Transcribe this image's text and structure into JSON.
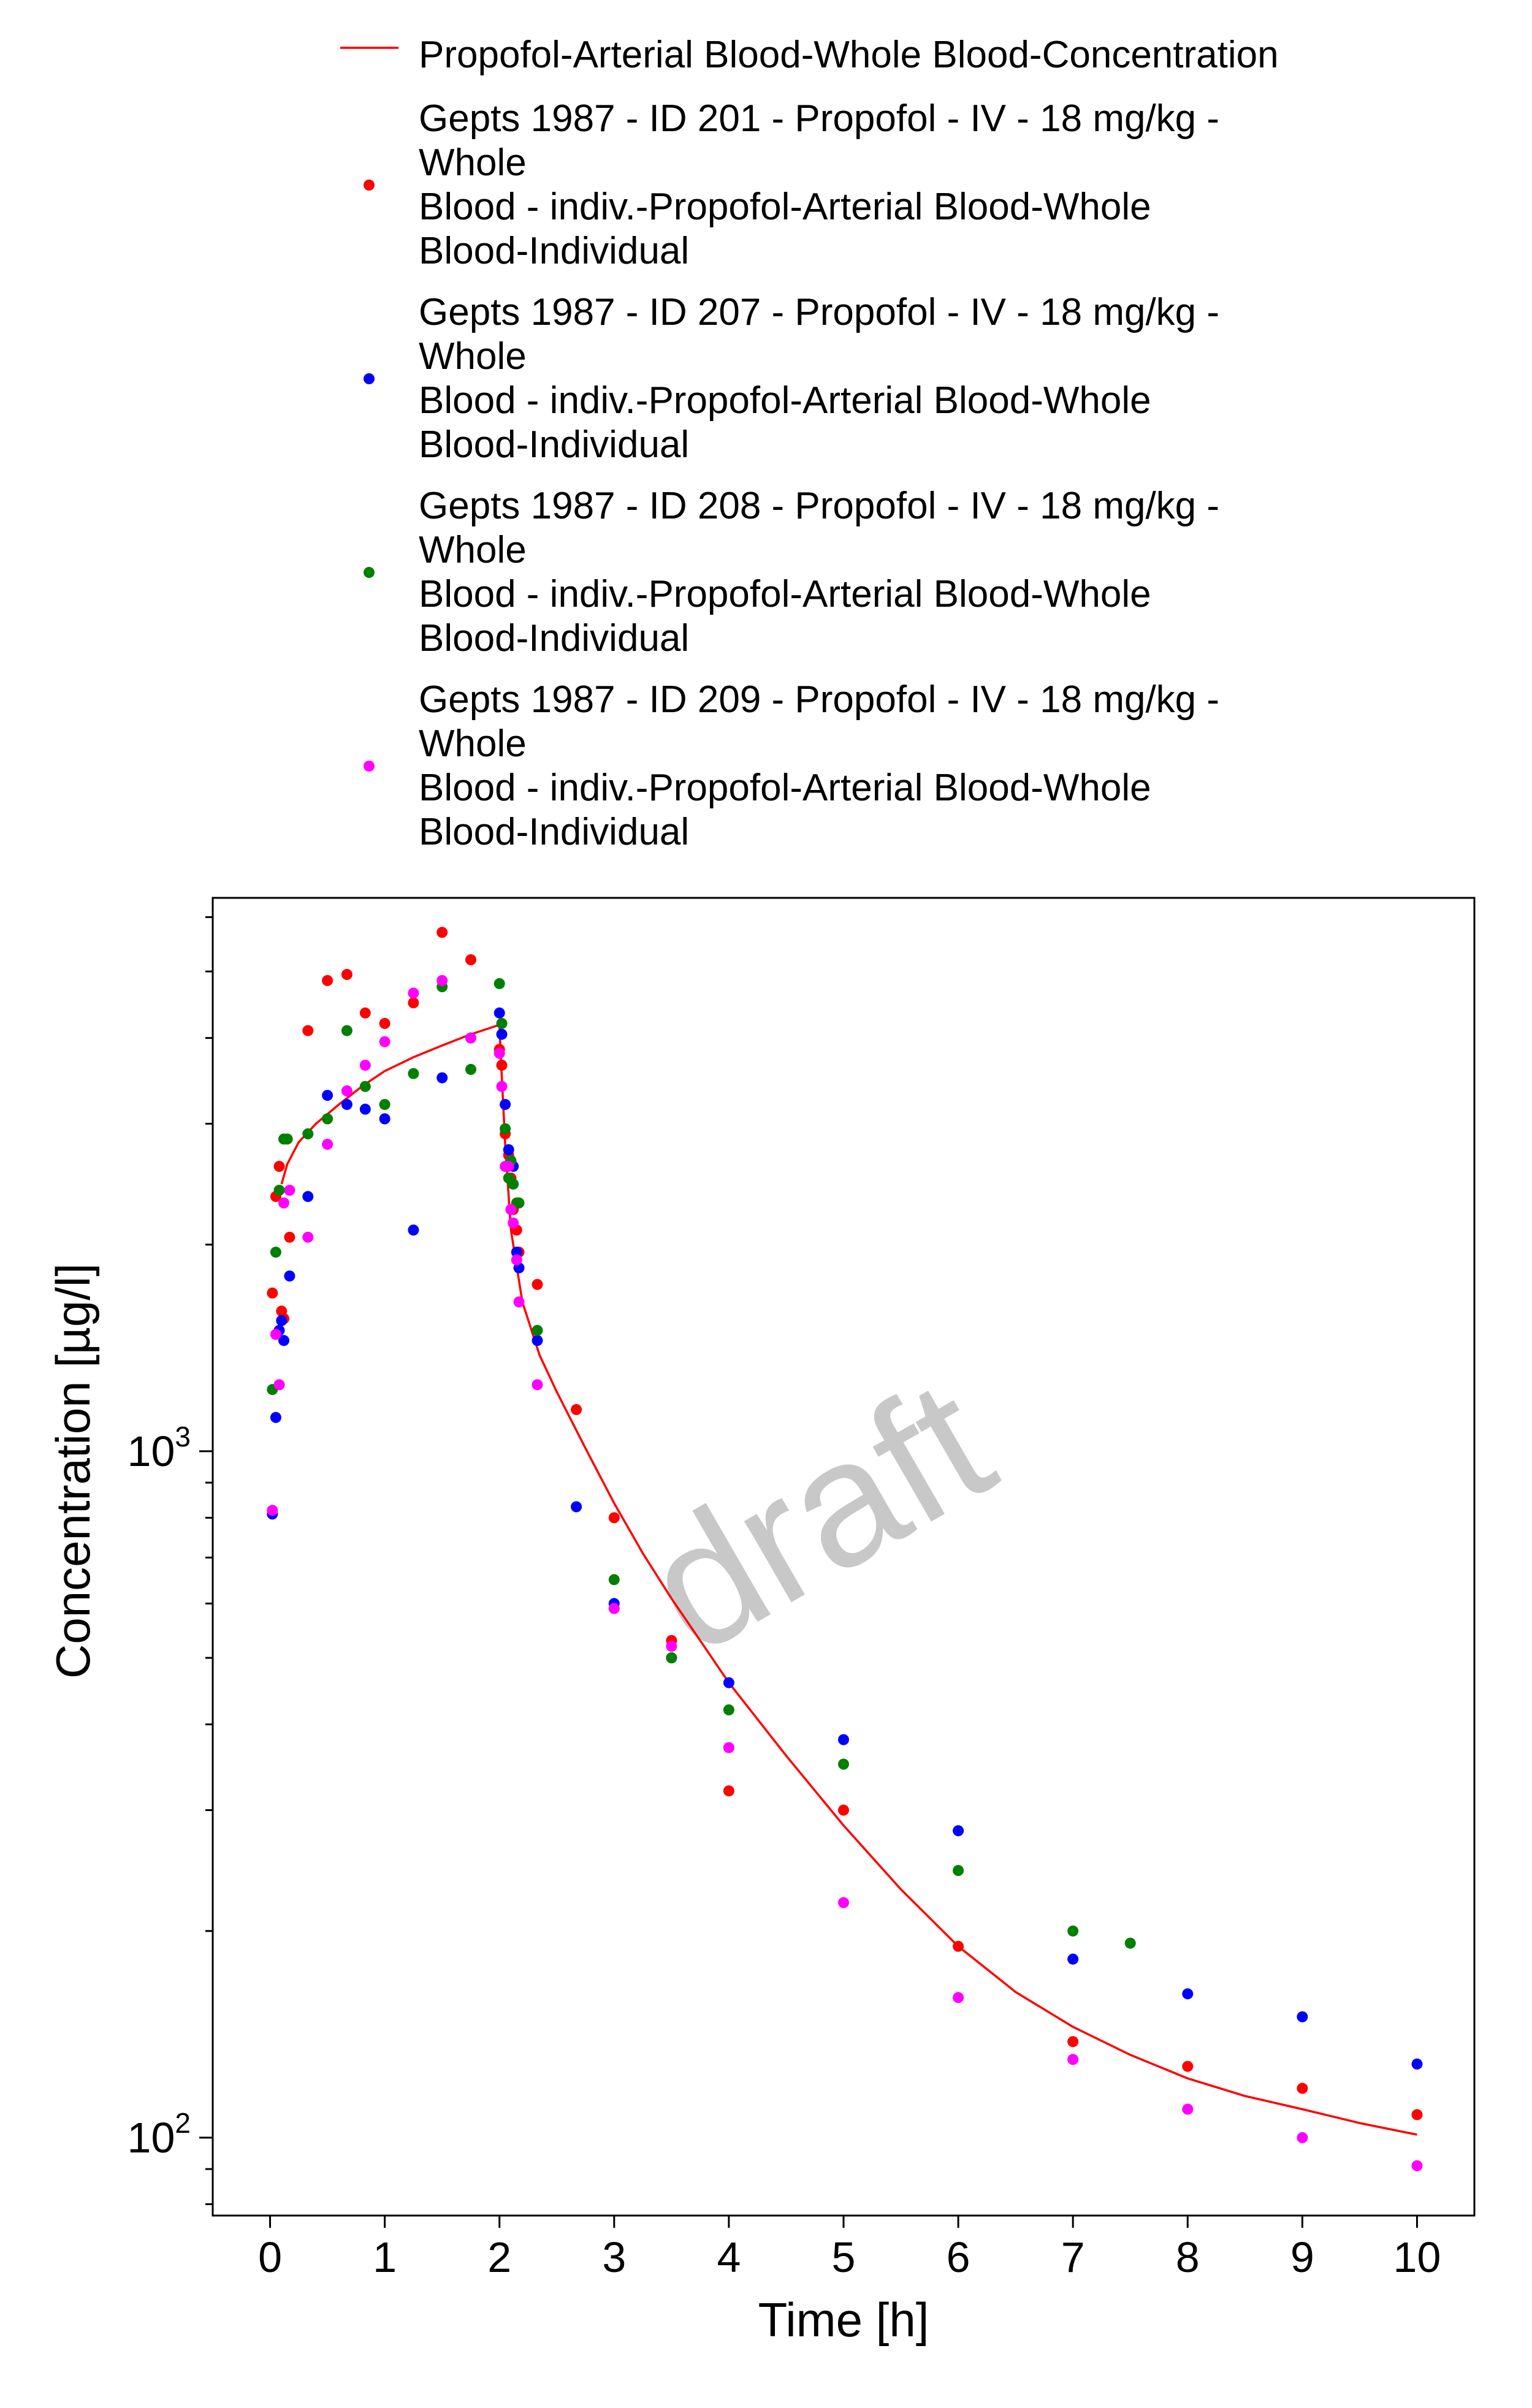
{
  "chart_data": {
    "type": "scatter",
    "watermark": "draft",
    "xlabel": "Time [h]",
    "ylabel": "Concentration [µg/l]",
    "x_scale": "linear",
    "y_scale": "log",
    "xlim": [
      -0.5,
      10.5
    ],
    "ylim": [
      77,
      6400
    ],
    "x_ticks": [
      0,
      1,
      2,
      3,
      4,
      5,
      6,
      7,
      8,
      9,
      10
    ],
    "x_tick_labels": [
      "0",
      "1",
      "2",
      "3",
      "4",
      "5",
      "6",
      "7",
      "8",
      "9",
      "10"
    ],
    "y_major_ticks": [
      100,
      1000
    ],
    "y_tick_labels": [
      {
        "base": "10",
        "exp": "2"
      },
      {
        "base": "10",
        "exp": "3"
      }
    ],
    "y_minor_ticks": [
      80,
      90,
      200,
      300,
      400,
      500,
      600,
      700,
      800,
      900,
      2000,
      3000,
      4000,
      5000,
      6000
    ],
    "grid": false,
    "legend_position": "top",
    "line": {
      "name": "Propofol-Arterial Blood-Whole Blood-Concentration",
      "color": "#ff0000",
      "x": [
        0.1,
        0.15,
        0.25,
        0.4,
        0.6,
        0.8,
        1.0,
        1.25,
        1.5,
        1.75,
        2.0,
        2.01,
        2.05,
        2.1,
        2.2,
        2.35,
        2.5,
        2.75,
        3.0,
        3.25,
        3.5,
        3.75,
        4.0,
        4.5,
        5.0,
        5.5,
        6.0,
        6.5,
        7.0,
        7.5,
        8.0,
        8.5,
        9.0,
        9.5,
        10.0
      ],
      "y": [
        2450,
        2620,
        2820,
        3000,
        3200,
        3400,
        3580,
        3750,
        3900,
        4050,
        4180,
        3800,
        2800,
        2100,
        1650,
        1380,
        1220,
        1010,
        840,
        710,
        610,
        530,
        460,
        360,
        285,
        230,
        190,
        163,
        145,
        132,
        122,
        115,
        110,
        105,
        101
      ]
    },
    "series": [
      {
        "name": "Gepts 1987 - ID 201 - Propofol - IV - 18 mg/kg - Whole Blood - indiv.-Propofol-Arterial Blood-Whole Blood-Individual",
        "legend_lines": [
          "Gepts 1987 - ID 201 - Propofol - IV - 18 mg/kg -",
          "Whole",
          "Blood - indiv.-Propofol-Arterial Blood-Whole",
          "Blood-Individual"
        ],
        "color": "#ff0000",
        "x": [
          0.02,
          0.05,
          0.08,
          0.1,
          0.12,
          0.17,
          0.33,
          0.5,
          0.67,
          0.83,
          1.0,
          1.25,
          1.5,
          1.75,
          2.0,
          2.02,
          2.05,
          2.08,
          2.1,
          2.12,
          2.15,
          2.17,
          2.33,
          2.67,
          3.0,
          3.5,
          4.0,
          5.0,
          6.0,
          7.0,
          8.0,
          9.0,
          10.0
        ],
        "y": [
          1700,
          2350,
          2600,
          1600,
          1560,
          2050,
          4100,
          4850,
          4950,
          4350,
          4200,
          4500,
          5700,
          5200,
          3850,
          3650,
          2900,
          2700,
          2500,
          2250,
          2100,
          1950,
          1750,
          1150,
          800,
          530,
          320,
          300,
          190,
          138,
          127,
          118,
          108
        ]
      },
      {
        "name": "Gepts 1987 - ID 207 - Propofol - IV - 18 mg/kg - Whole Blood - indiv.-Propofol-Arterial Blood-Whole Blood-Individual",
        "legend_lines": [
          "Gepts 1987 - ID 207 - Propofol - IV - 18 mg/kg -",
          "Whole",
          "Blood - indiv.-Propofol-Arterial Blood-Whole",
          "Blood-Individual"
        ],
        "color": "#0000ff",
        "x": [
          0.02,
          0.05,
          0.08,
          0.1,
          0.12,
          0.17,
          0.33,
          0.5,
          0.67,
          0.83,
          1.0,
          1.25,
          1.5,
          1.75,
          2.0,
          2.02,
          2.05,
          2.08,
          2.1,
          2.12,
          2.15,
          2.17,
          2.33,
          2.67,
          3.0,
          3.5,
          4.0,
          5.0,
          6.0,
          7.0,
          8.0,
          9.0,
          10.0
        ],
        "y": [
          810,
          1120,
          1500,
          1550,
          1450,
          1800,
          2350,
          3300,
          3200,
          3150,
          3050,
          2100,
          3500,
          4000,
          4350,
          4050,
          3200,
          2750,
          2650,
          2600,
          1950,
          1850,
          1450,
          830,
          600,
          500,
          460,
          380,
          280,
          182,
          162,
          150,
          128
        ]
      },
      {
        "name": "Gepts 1987 - ID 208 - Propofol - IV - 18 mg/kg - Whole Blood - indiv.-Propofol-Arterial Blood-Whole Blood-Individual",
        "legend_lines": [
          "Gepts 1987 - ID 208 - Propofol - IV - 18 mg/kg -",
          "Whole",
          "Blood - indiv.-Propofol-Arterial Blood-Whole",
          "Blood-Individual"
        ],
        "color": "#008000",
        "x": [
          0.02,
          0.05,
          0.08,
          0.12,
          0.15,
          0.33,
          0.5,
          0.67,
          0.83,
          1.0,
          1.25,
          1.5,
          1.75,
          2.0,
          2.02,
          2.05,
          2.08,
          2.1,
          2.12,
          2.15,
          2.17,
          2.33,
          3.0,
          3.5,
          4.0,
          5.0,
          6.0,
          7.0,
          7.5
        ],
        "y": [
          1230,
          1950,
          2400,
          2850,
          2850,
          2900,
          3050,
          4100,
          3400,
          3200,
          3550,
          4750,
          3600,
          4800,
          4200,
          2950,
          2500,
          2650,
          2450,
          2300,
          2300,
          1500,
          650,
          500,
          420,
          350,
          245,
          200,
          192
        ]
      },
      {
        "name": "Gepts 1987 - ID 209 - Propofol - IV - 18 mg/kg - Whole Blood - indiv.-Propofol-Arterial Blood-Whole Blood-Individual",
        "legend_lines": [
          "Gepts 1987 - ID 209 - Propofol - IV - 18 mg/kg -",
          "Whole",
          "Blood - indiv.-Propofol-Arterial Blood-Whole",
          "Blood-Individual"
        ],
        "color": "#ff00ff",
        "x": [
          0.02,
          0.05,
          0.08,
          0.12,
          0.17,
          0.33,
          0.5,
          0.67,
          0.83,
          1.0,
          1.25,
          1.5,
          1.75,
          2.0,
          2.02,
          2.05,
          2.08,
          2.1,
          2.12,
          2.15,
          2.17,
          2.33,
          3.0,
          3.5,
          4.0,
          5.0,
          6.0,
          7.0,
          8.0,
          9.0,
          10.0
        ],
        "y": [
          820,
          1480,
          1250,
          2300,
          2400,
          2050,
          2800,
          3350,
          3650,
          3950,
          4650,
          4850,
          4000,
          3800,
          3400,
          2600,
          2600,
          2250,
          2150,
          1900,
          1650,
          1250,
          590,
          520,
          370,
          220,
          160,
          130,
          110,
          100,
          91
        ]
      }
    ]
  }
}
